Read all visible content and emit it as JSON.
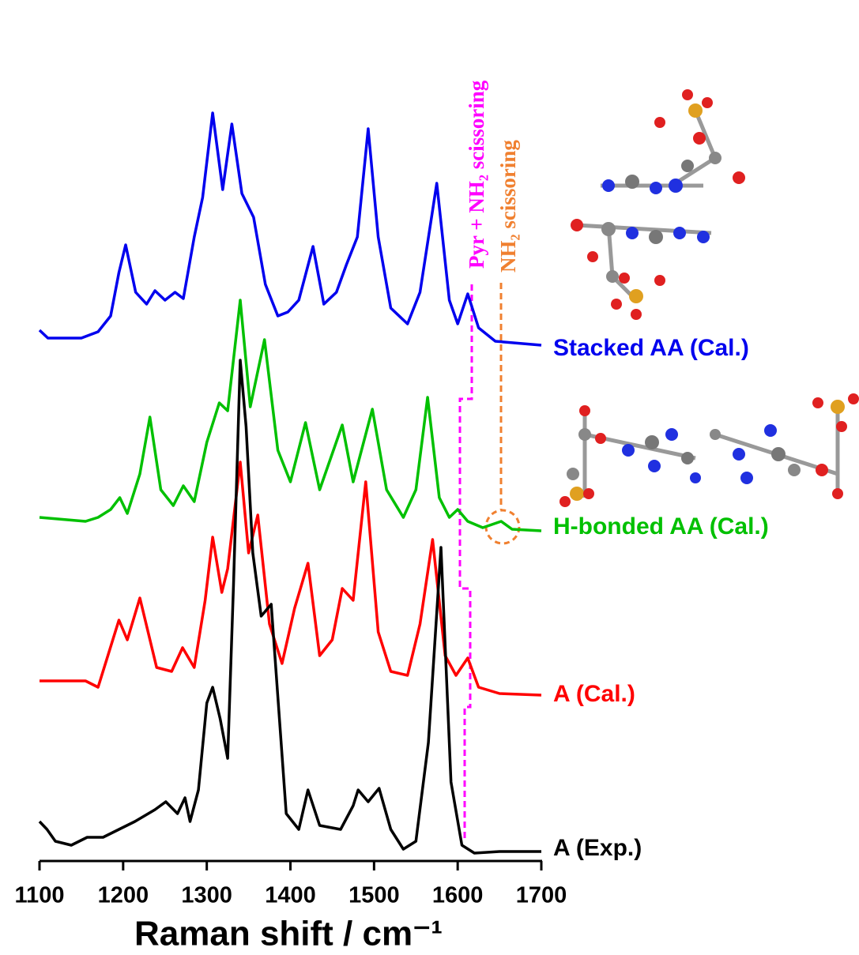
{
  "chart_data": {
    "type": "line",
    "x_label": "Raman shift / cm⁻¹",
    "xlim": [
      1100,
      1700
    ],
    "xticks": [
      1100,
      1200,
      1300,
      1400,
      1500,
      1600,
      1700
    ],
    "ylim": [
      0,
      1000
    ],
    "annotations": [
      "Pyr + NH₂ scissoring",
      "NH₂ scissoring"
    ],
    "series": [
      {
        "name": "Stacked AA (Cal.)",
        "color": "#0000ee",
        "x": [
          1100,
          1110,
          1150,
          1170,
          1185,
          1195,
          1203,
          1215,
          1228,
          1238,
          1250,
          1262,
          1272,
          1285,
          1295,
          1307,
          1319,
          1330,
          1342,
          1356,
          1370,
          1385,
          1397,
          1410,
          1427,
          1440,
          1455,
          1467,
          1480,
          1493,
          1505,
          1520,
          1540,
          1555,
          1575,
          1590,
          1600,
          1612,
          1625,
          1645,
          1700
        ],
        "values": [
          672,
          662,
          662,
          670,
          690,
          745,
          780,
          720,
          705,
          722,
          710,
          720,
          712,
          790,
          840,
          947,
          850,
          933,
          845,
          815,
          730,
          690,
          695,
          710,
          778,
          705,
          720,
          755,
          790,
          927,
          790,
          700,
          680,
          720,
          858,
          710,
          680,
          718,
          675,
          658,
          653
        ]
      },
      {
        "name": "H-bonded AA (Cal.)",
        "color": "#00c000",
        "x": [
          1100,
          1155,
          1170,
          1185,
          1196,
          1205,
          1220,
          1232,
          1245,
          1260,
          1272,
          1285,
          1300,
          1315,
          1325,
          1340,
          1352,
          1369,
          1385,
          1400,
          1418,
          1435,
          1462,
          1475,
          1498,
          1515,
          1535,
          1550,
          1564,
          1578,
          1590,
          1600,
          1612,
          1630,
          1652,
          1665,
          1700
        ],
        "values": [
          435,
          430,
          435,
          445,
          460,
          440,
          490,
          562,
          470,
          450,
          475,
          455,
          530,
          580,
          570,
          710,
          575,
          660,
          520,
          480,
          555,
          470,
          552,
          480,
          572,
          470,
          435,
          470,
          587,
          460,
          435,
          445,
          430,
          422,
          430,
          420,
          418
        ]
      },
      {
        "name": "A (Cal.)",
        "color": "#ff0000",
        "x": [
          1100,
          1155,
          1170,
          1195,
          1205,
          1220,
          1240,
          1258,
          1271,
          1285,
          1298,
          1307,
          1318,
          1325,
          1340,
          1350,
          1361,
          1375,
          1390,
          1405,
          1421,
          1435,
          1450,
          1462,
          1475,
          1490,
          1505,
          1520,
          1540,
          1555,
          1570,
          1585,
          1598,
          1612,
          1625,
          1650,
          1700
        ],
        "values": [
          228,
          228,
          220,
          305,
          280,
          333,
          245,
          240,
          270,
          245,
          330,
          410,
          340,
          370,
          505,
          390,
          438,
          300,
          250,
          320,
          377,
          260,
          280,
          345,
          330,
          480,
          290,
          240,
          235,
          300,
          407,
          260,
          235,
          257,
          220,
          212,
          210
        ]
      },
      {
        "name": "A (Exp.)",
        "color": "#000000",
        "x": [
          1100,
          1109,
          1119,
          1138,
          1157,
          1176,
          1195,
          1214,
          1238,
          1251,
          1265,
          1274,
          1280,
          1290,
          1300,
          1307,
          1316,
          1325,
          1332,
          1340,
          1347,
          1355,
          1365,
          1377,
          1395,
          1410,
          1421,
          1435,
          1460,
          1475,
          1481,
          1493,
          1506,
          1520,
          1535,
          1550,
          1565,
          1580,
          1592,
          1605,
          1620,
          1650,
          1700
        ],
        "values": [
          50,
          40,
          25,
          20,
          30,
          30,
          40,
          50,
          65,
          75,
          60,
          80,
          50,
          90,
          200,
          220,
          180,
          130,
          350,
          634,
          550,
          390,
          310,
          325,
          60,
          40,
          90,
          45,
          40,
          70,
          90,
          75,
          92,
          40,
          15,
          25,
          150,
          397,
          100,
          20,
          10,
          12,
          12
        ]
      }
    ]
  }
}
